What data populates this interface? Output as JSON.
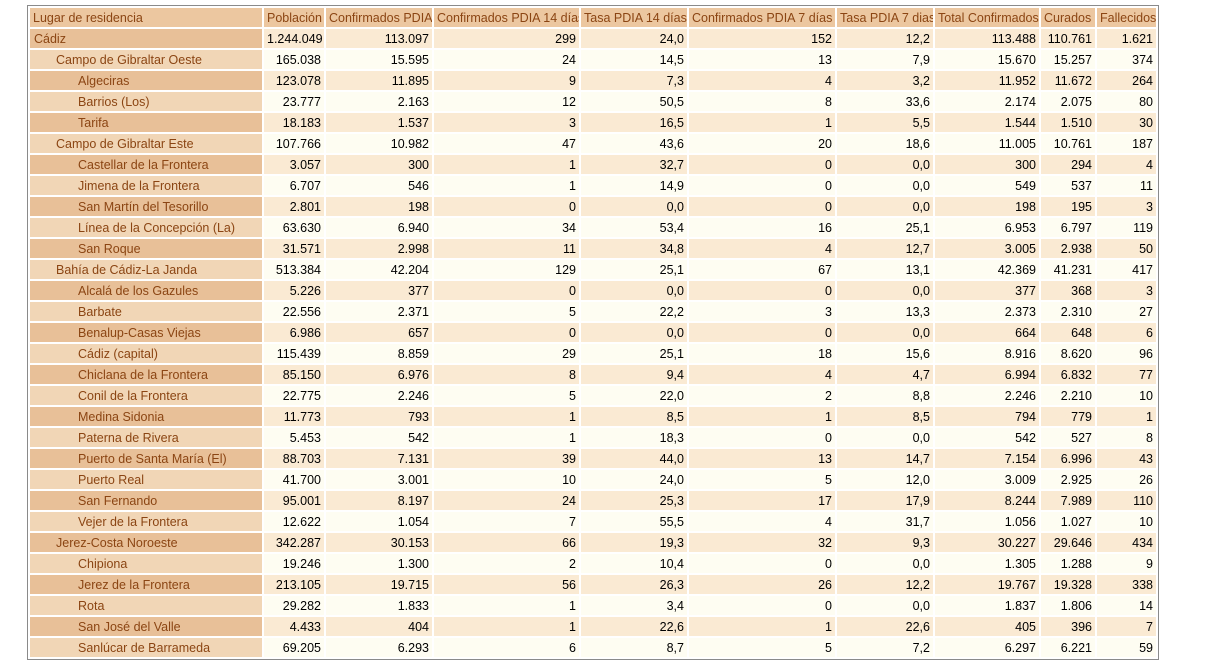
{
  "table": {
    "columns": [
      "Lugar de residencia",
      "Población",
      "Confirmados PDIA",
      "Confirmados PDIA 14 días",
      "Tasa PDIA 14 días",
      "Confirmados PDIA 7 días",
      "Tasa PDIA 7 dias",
      "Total Confirmados",
      "Curados",
      "Fallecidos"
    ],
    "rows": [
      {
        "name": "Cádiz",
        "level": 0,
        "values": [
          "1.244.049",
          "113.097",
          "299",
          "24,0",
          "152",
          "12,2",
          "113.488",
          "110.761",
          "1.621"
        ]
      },
      {
        "name": "Campo de Gibraltar Oeste",
        "level": 1,
        "values": [
          "165.038",
          "15.595",
          "24",
          "14,5",
          "13",
          "7,9",
          "15.670",
          "15.257",
          "374"
        ]
      },
      {
        "name": "Algeciras",
        "level": 2,
        "values": [
          "123.078",
          "11.895",
          "9",
          "7,3",
          "4",
          "3,2",
          "11.952",
          "11.672",
          "264"
        ]
      },
      {
        "name": "Barrios (Los)",
        "level": 2,
        "values": [
          "23.777",
          "2.163",
          "12",
          "50,5",
          "8",
          "33,6",
          "2.174",
          "2.075",
          "80"
        ]
      },
      {
        "name": "Tarifa",
        "level": 2,
        "values": [
          "18.183",
          "1.537",
          "3",
          "16,5",
          "1",
          "5,5",
          "1.544",
          "1.510",
          "30"
        ]
      },
      {
        "name": "Campo de Gibraltar Este",
        "level": 1,
        "values": [
          "107.766",
          "10.982",
          "47",
          "43,6",
          "20",
          "18,6",
          "11.005",
          "10.761",
          "187"
        ]
      },
      {
        "name": "Castellar de la Frontera",
        "level": 2,
        "values": [
          "3.057",
          "300",
          "1",
          "32,7",
          "0",
          "0,0",
          "300",
          "294",
          "4"
        ]
      },
      {
        "name": "Jimena de la Frontera",
        "level": 2,
        "values": [
          "6.707",
          "546",
          "1",
          "14,9",
          "0",
          "0,0",
          "549",
          "537",
          "11"
        ]
      },
      {
        "name": "San Martín del Tesorillo",
        "level": 2,
        "values": [
          "2.801",
          "198",
          "0",
          "0,0",
          "0",
          "0,0",
          "198",
          "195",
          "3"
        ]
      },
      {
        "name": "Línea de la Concepción (La)",
        "level": 2,
        "values": [
          "63.630",
          "6.940",
          "34",
          "53,4",
          "16",
          "25,1",
          "6.953",
          "6.797",
          "119"
        ]
      },
      {
        "name": "San Roque",
        "level": 2,
        "values": [
          "31.571",
          "2.998",
          "11",
          "34,8",
          "4",
          "12,7",
          "3.005",
          "2.938",
          "50"
        ]
      },
      {
        "name": "Bahía de Cádiz-La Janda",
        "level": 1,
        "values": [
          "513.384",
          "42.204",
          "129",
          "25,1",
          "67",
          "13,1",
          "42.369",
          "41.231",
          "417"
        ]
      },
      {
        "name": "Alcalá de los Gazules",
        "level": 2,
        "values": [
          "5.226",
          "377",
          "0",
          "0,0",
          "0",
          "0,0",
          "377",
          "368",
          "3"
        ]
      },
      {
        "name": "Barbate",
        "level": 2,
        "values": [
          "22.556",
          "2.371",
          "5",
          "22,2",
          "3",
          "13,3",
          "2.373",
          "2.310",
          "27"
        ]
      },
      {
        "name": "Benalup-Casas Viejas",
        "level": 2,
        "values": [
          "6.986",
          "657",
          "0",
          "0,0",
          "0",
          "0,0",
          "664",
          "648",
          "6"
        ]
      },
      {
        "name": "Cádiz (capital)",
        "level": 2,
        "values": [
          "115.439",
          "8.859",
          "29",
          "25,1",
          "18",
          "15,6",
          "8.916",
          "8.620",
          "96"
        ]
      },
      {
        "name": "Chiclana de la Frontera",
        "level": 2,
        "values": [
          "85.150",
          "6.976",
          "8",
          "9,4",
          "4",
          "4,7",
          "6.994",
          "6.832",
          "77"
        ]
      },
      {
        "name": "Conil de la Frontera",
        "level": 2,
        "values": [
          "22.775",
          "2.246",
          "5",
          "22,0",
          "2",
          "8,8",
          "2.246",
          "2.210",
          "10"
        ]
      },
      {
        "name": "Medina Sidonia",
        "level": 2,
        "values": [
          "11.773",
          "793",
          "1",
          "8,5",
          "1",
          "8,5",
          "794",
          "779",
          "1"
        ]
      },
      {
        "name": "Paterna de Rivera",
        "level": 2,
        "values": [
          "5.453",
          "542",
          "1",
          "18,3",
          "0",
          "0,0",
          "542",
          "527",
          "8"
        ]
      },
      {
        "name": "Puerto de Santa María (El)",
        "level": 2,
        "values": [
          "88.703",
          "7.131",
          "39",
          "44,0",
          "13",
          "14,7",
          "7.154",
          "6.996",
          "43"
        ]
      },
      {
        "name": "Puerto Real",
        "level": 2,
        "values": [
          "41.700",
          "3.001",
          "10",
          "24,0",
          "5",
          "12,0",
          "3.009",
          "2.925",
          "26"
        ]
      },
      {
        "name": "San Fernando",
        "level": 2,
        "values": [
          "95.001",
          "8.197",
          "24",
          "25,3",
          "17",
          "17,9",
          "8.244",
          "7.989",
          "110"
        ]
      },
      {
        "name": "Vejer de la Frontera",
        "level": 2,
        "values": [
          "12.622",
          "1.054",
          "7",
          "55,5",
          "4",
          "31,7",
          "1.056",
          "1.027",
          "10"
        ]
      },
      {
        "name": "Jerez-Costa Noroeste",
        "level": 1,
        "values": [
          "342.287",
          "30.153",
          "66",
          "19,3",
          "32",
          "9,3",
          "30.227",
          "29.646",
          "434"
        ]
      },
      {
        "name": "Chipiona",
        "level": 2,
        "values": [
          "19.246",
          "1.300",
          "2",
          "10,4",
          "0",
          "0,0",
          "1.305",
          "1.288",
          "9"
        ]
      },
      {
        "name": "Jerez de la Frontera",
        "level": 2,
        "values": [
          "213.105",
          "19.715",
          "56",
          "26,3",
          "26",
          "12,2",
          "19.767",
          "19.328",
          "338"
        ]
      },
      {
        "name": "Rota",
        "level": 2,
        "values": [
          "29.282",
          "1.833",
          "1",
          "3,4",
          "0",
          "0,0",
          "1.837",
          "1.806",
          "14"
        ]
      },
      {
        "name": "San José del Valle",
        "level": 2,
        "values": [
          "4.433",
          "404",
          "1",
          "22,6",
          "1",
          "22,6",
          "405",
          "396",
          "7"
        ]
      },
      {
        "name": "Sanlúcar de Barrameda",
        "level": 2,
        "values": [
          "69.205",
          "6.293",
          "6",
          "8,7",
          "5",
          "7,2",
          "6.297",
          "6.221",
          "59"
        ]
      }
    ]
  },
  "colors": {
    "header_bg": "#ecc7a0",
    "name_cell_dark": "#e8c098",
    "name_cell_light": "#f1d6b6",
    "data_cell_peach": "#faead3",
    "data_cell_ivory": "#fefdf2",
    "header_text": "#8b4513",
    "value_text": "#000000",
    "table_border": "#8a8a8a",
    "grid_lines": "#ffffff"
  }
}
